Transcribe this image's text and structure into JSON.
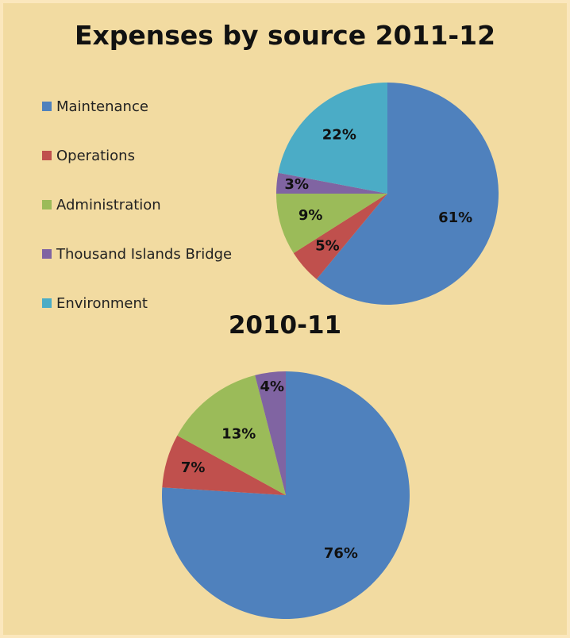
{
  "chart_data": [
    {
      "type": "pie",
      "title": "Expenses by source 2011-12",
      "categories": [
        "Maintenance",
        "Operations",
        "Administration",
        "Thousand Islands Bridge",
        "Environment"
      ],
      "values": [
        61,
        5,
        9,
        3,
        22
      ],
      "labels": [
        "61%",
        "5%",
        "9%",
        "3%",
        "22%"
      ],
      "colors": [
        "#4f81bd",
        "#c0504d",
        "#9bbb59",
        "#8064a2",
        "#4bacc6"
      ],
      "legend": "left"
    },
    {
      "type": "pie",
      "title": "2010-11",
      "categories": [
        "Maintenance",
        "Operations",
        "Administration",
        "Thousand Islands Bridge"
      ],
      "values": [
        76,
        7,
        13,
        4
      ],
      "labels": [
        "76%",
        "7%",
        "13%",
        "4%"
      ],
      "colors": [
        "#4f81bd",
        "#c0504d",
        "#9bbb59",
        "#8064a2"
      ]
    }
  ],
  "legend": {
    "items": [
      {
        "label": "Maintenance",
        "color": "#4f81bd"
      },
      {
        "label": "Operations",
        "color": "#c0504d"
      },
      {
        "label": "Administration",
        "color": "#9bbb59"
      },
      {
        "label": "Thousand Islands Bridge",
        "color": "#8064a2"
      },
      {
        "label": "Environment",
        "color": "#4bacc6"
      }
    ]
  },
  "colors": {
    "background": "#f2dba1",
    "border": "#fbe7bd"
  }
}
